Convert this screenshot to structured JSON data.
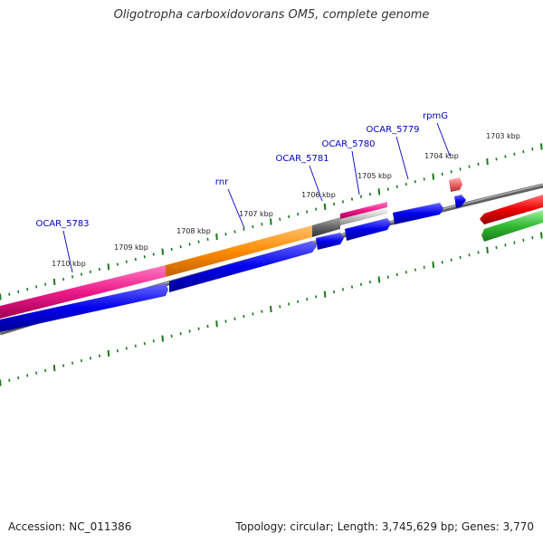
{
  "title": "Oligotropha carboxidovorans OM5, complete genome",
  "footer": {
    "accession": "Accession: NC_011386",
    "info": "Topology: circular; Length: 3,745,629 bp; Genes: 3,770"
  },
  "scale_labels": [
    "1703 kbp",
    "1704 kbp",
    "1705 kbp",
    "1706 kbp",
    "1707 kbp",
    "1708 kbp",
    "1709 kbp",
    "1710 kbp"
  ],
  "gene_labels": [
    "rpmG",
    "OCAR_5779",
    "OCAR_5780",
    "OCAR_5781",
    "rnr",
    "OCAR_5783"
  ],
  "colors": {
    "scale_ticks": "#1a7a1a",
    "label_text": "#0000cc",
    "leader_line": "#0000cc",
    "backbone": "#808080",
    "cds_forward": "#0000ee",
    "gene_pink": "#ee1a8a",
    "gene_orange": "#ff8c00",
    "gene_gray": "#666666",
    "rna_red": "#ee0000",
    "rna_green": "#33bb33",
    "trna_salmon": "#ee6666"
  }
}
